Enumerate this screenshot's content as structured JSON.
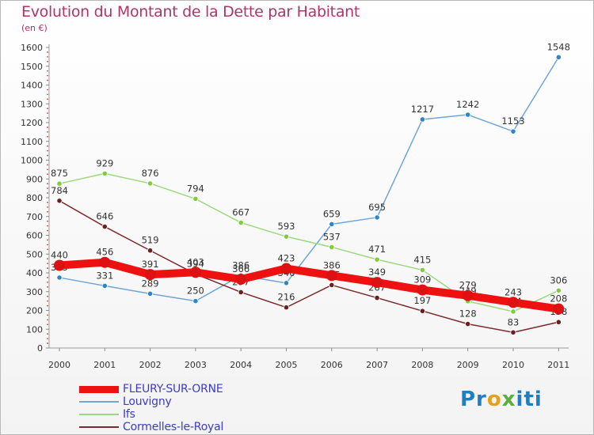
{
  "title": "Evolution du Montant de la Dette par Habitant",
  "unit": "(en €)",
  "logo": "Proxiti",
  "chart_data": {
    "type": "line",
    "title": "Evolution du Montant de la Dette par Habitant",
    "ylabel": "(en €)",
    "xlabel": "",
    "ylim": [
      0,
      1600
    ],
    "yticks": [
      0,
      100,
      200,
      300,
      400,
      500,
      600,
      700,
      800,
      900,
      1000,
      1100,
      1200,
      1300,
      1400,
      1500,
      1600
    ],
    "grid": false,
    "legend_position": "bottom-left",
    "x": [
      "2000",
      "2001",
      "2002",
      "2003",
      "2004",
      "2005",
      "2006",
      "2007",
      "2008",
      "2009",
      "2010",
      "2011"
    ],
    "series": [
      {
        "name": "FLEURY-SUR-ORNE",
        "color": "#ee1111",
        "marker": "#dd1111",
        "emphasis": true,
        "values": [
          440,
          456,
          391,
          403,
          366,
          423,
          386,
          349,
          309,
          279,
          243,
          208
        ]
      },
      {
        "name": "Louvigny",
        "color": "#6fa6d6",
        "marker": "#2e86c8",
        "emphasis": false,
        "values": [
          375,
          331,
          289,
          250,
          386,
          346,
          659,
          695,
          1217,
          1242,
          1153,
          1548
        ]
      },
      {
        "name": "Ifs",
        "color": "#9cd87e",
        "marker": "#7fcc3f",
        "emphasis": false,
        "values": [
          875,
          929,
          876,
          794,
          667,
          593,
          537,
          471,
          415,
          249,
          194,
          306
        ]
      },
      {
        "name": "Cormelles-le-Royal",
        "color": "#7a2a2a",
        "marker": "#6b1f1f",
        "emphasis": false,
        "values": [
          784,
          646,
          519,
          394,
          297,
          216,
          335,
          267,
          197,
          128,
          83,
          138
        ]
      }
    ]
  }
}
